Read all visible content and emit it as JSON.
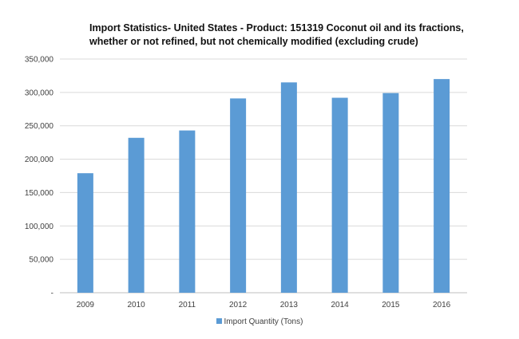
{
  "chart_data": {
    "type": "bar",
    "title_lines": [
      "Import Statistics- United States - Product: 151319 Coconut oil and its fractions,",
      "whether or not refined, but not chemically modified (excluding crude)"
    ],
    "categories": [
      "2009",
      "2010",
      "2011",
      "2012",
      "2013",
      "2014",
      "2015",
      "2016"
    ],
    "series": [
      {
        "name": "Import Quantity (Tons)",
        "values": [
          179000,
          232000,
          243000,
          291000,
          315000,
          292000,
          299000,
          320000
        ]
      }
    ],
    "y_ticks": [
      0,
      50000,
      100000,
      150000,
      200000,
      250000,
      300000,
      350000
    ],
    "y_tick_labels": [
      "-",
      "50,000",
      "100,000",
      "150,000",
      "200,000",
      "250,000",
      "300,000",
      "350,000"
    ],
    "ylim": [
      0,
      350000
    ],
    "grid": true,
    "legend_position": "bottom",
    "bar_color": "#5b9bd5"
  }
}
